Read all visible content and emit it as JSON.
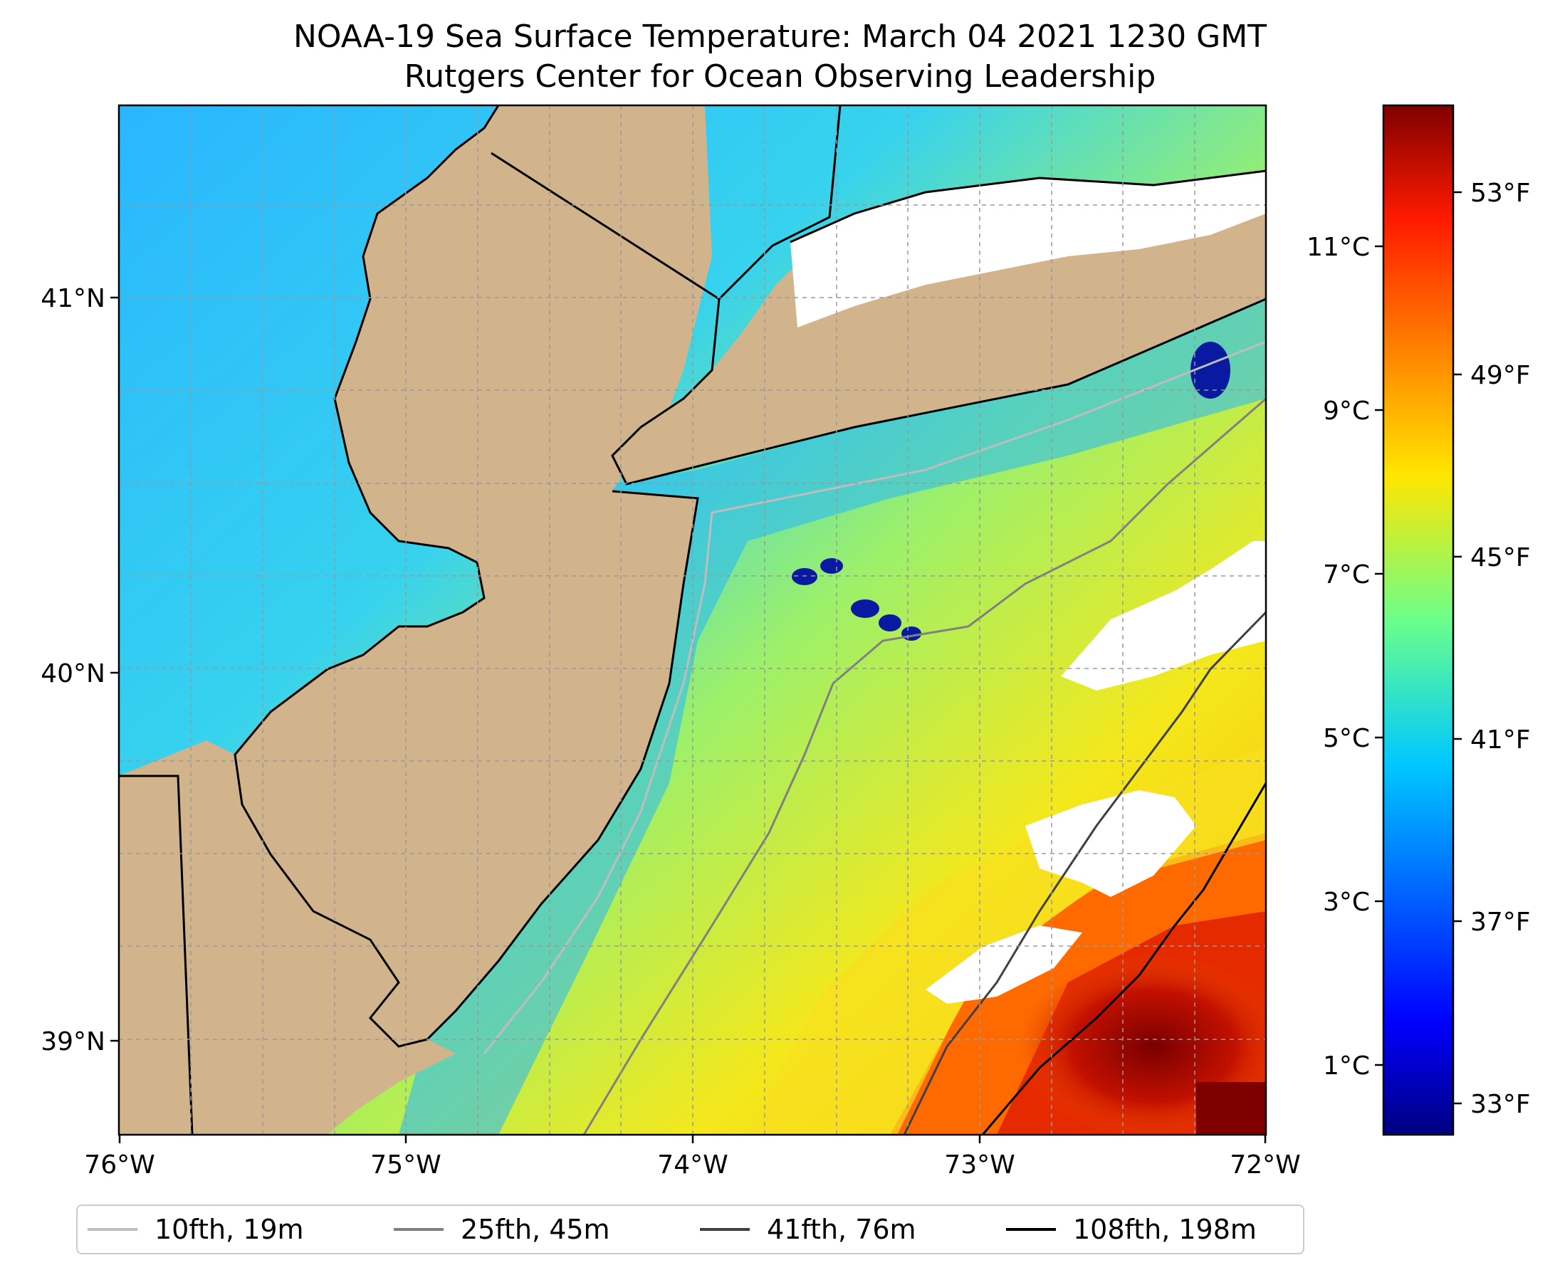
{
  "title": {
    "line1": "NOAA-19 Sea Surface Temperature: March 04 2021 1230 GMT",
    "line2": "Rutgers Center for Ocean Observing Leadership"
  },
  "map": {
    "lon_range": [
      -76,
      -72
    ],
    "lat_range": [
      38.73,
      41.52
    ],
    "x_ticks": [
      "76°W",
      "75°W",
      "74°W",
      "73°W",
      "72°W"
    ],
    "y_ticks": [
      "41°N",
      "40°N",
      "39°N"
    ],
    "land_color": "#d2b48c",
    "cloud_color": "#ffffff",
    "grid": true
  },
  "colorbar": {
    "colormap": "jet",
    "celsius_ticks": [
      "1°C",
      "3°C",
      "5°C",
      "7°C",
      "9°C",
      "11°C"
    ],
    "fahrenheit_ticks": [
      "33°F",
      "37°F",
      "41°F",
      "45°F",
      "49°F",
      "53°F"
    ]
  },
  "legend": [
    {
      "label": "10fth, 19m",
      "color": "#bdbdbd"
    },
    {
      "label": "25fth, 45m",
      "color": "#808080"
    },
    {
      "label": "41fth, 76m",
      "color": "#404040"
    },
    {
      "label": "108fth, 198m",
      "color": "#000000"
    }
  ]
}
